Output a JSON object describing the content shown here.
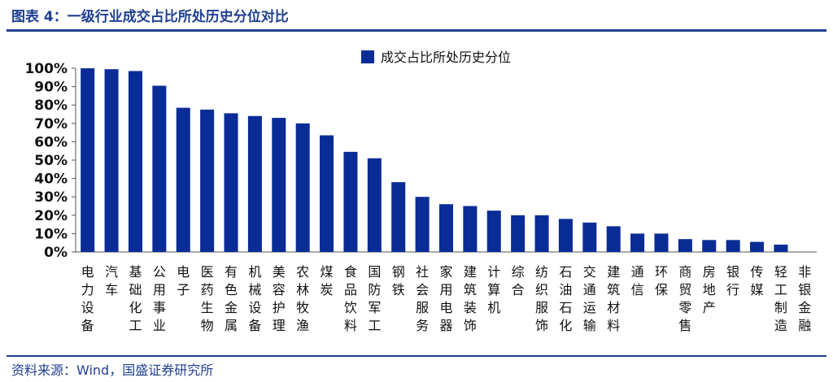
{
  "figure": {
    "title": "图表 4：一级行业成交占比所处历史分位对比",
    "source": "资料来源：Wind，国盛证券研究所"
  },
  "colors": {
    "bar": "#0a2c96",
    "header": "#1f3f8f",
    "axis": "#555555"
  },
  "chart_data": {
    "type": "bar",
    "title": "",
    "xlabel": "",
    "ylabel": "",
    "ylim": [
      0,
      100
    ],
    "y_ticks": [
      "0%",
      "10%",
      "20%",
      "30%",
      "40%",
      "50%",
      "60%",
      "70%",
      "80%",
      "90%",
      "100%"
    ],
    "legend": {
      "position": "top-center",
      "entries": [
        "成交占比所处历史分位"
      ]
    },
    "grid": false,
    "categories": [
      "电力设备",
      "汽车",
      "基础化工",
      "公用事业",
      "电子",
      "医药生物",
      "有色金属",
      "机械设备",
      "美容护理",
      "农林牧渔",
      "煤炭",
      "食品饮料",
      "国防军工",
      "钢铁",
      "社会服务",
      "家用电器",
      "建筑装饰",
      "计算机",
      "综合",
      "纺织服饰",
      "石油石化",
      "交通运输",
      "建筑材料",
      "通信",
      "环保",
      "商贸零售",
      "房地产",
      "银行",
      "传媒",
      "轻工制造",
      "非银金融"
    ],
    "series": [
      {
        "name": "成交占比所处历史分位",
        "values": [
          100,
          99.5,
          98.5,
          90.5,
          78.5,
          77.5,
          75.5,
          74,
          73,
          70,
          63.5,
          54.5,
          51,
          38,
          30,
          26,
          25,
          22.5,
          20,
          20,
          18,
          16,
          14,
          10,
          10,
          7,
          6.5,
          6.5,
          5.5,
          4,
          0
        ]
      }
    ]
  }
}
